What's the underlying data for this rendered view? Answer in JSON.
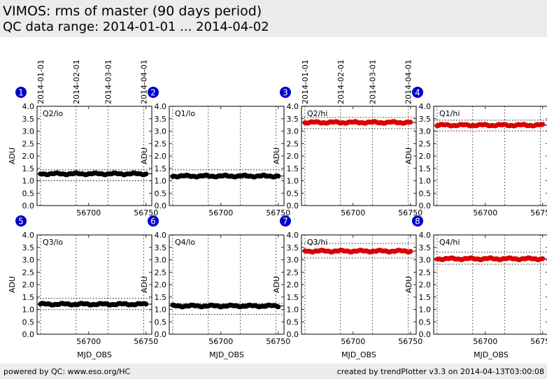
{
  "header": {
    "title": "VIMOS: rms of master (90 days period)",
    "subtitle": "QC data range: 2014-01-01 ... 2014-04-02"
  },
  "footer": {
    "left": "powered by QC: www.eso.org/HC",
    "right": "created by trendPlotter v3.3 on 2014-04-13T03:00:08"
  },
  "colors": {
    "lo": "#000000",
    "hi": "#dd0000",
    "badge": "#0000cc"
  },
  "chart_data": {
    "type": "scatter",
    "xlabel": "MJD_OBS",
    "ylabel": "ADU",
    "xlim": [
      56655,
      56755
    ],
    "ylim": [
      0.0,
      4.0
    ],
    "xticks": [
      56700,
      56750
    ],
    "yticks": [
      0.0,
      0.5,
      1.0,
      1.5,
      2.0,
      2.5,
      3.0,
      3.5,
      4.0
    ],
    "date_ticks": [
      {
        "mjd": 56658,
        "label": "2014-01-01"
      },
      {
        "mjd": 56689,
        "label": "2014-02-01"
      },
      {
        "mjd": 56717,
        "label": "2014-03-01"
      },
      {
        "mjd": 56748,
        "label": "2014-04-01"
      }
    ],
    "panels": [
      {
        "number": "1",
        "label": "Q2/lo",
        "mean": 1.28,
        "upper": 1.44,
        "lower": 1.0,
        "color": "lo"
      },
      {
        "number": "2",
        "label": "Q1/lo",
        "mean": 1.19,
        "upper": 1.44,
        "lower": 1.1,
        "color": "lo"
      },
      {
        "number": "3",
        "label": "Q2/hi",
        "mean": 3.35,
        "upper": 3.55,
        "lower": 3.1,
        "color": "hi"
      },
      {
        "number": "4",
        "label": "Q1/hi",
        "mean": 3.24,
        "upper": 3.44,
        "lower": 3.01,
        "color": "hi"
      },
      {
        "number": "5",
        "label": "Q3/lo",
        "mean": 1.21,
        "upper": 1.45,
        "lower": 0.99,
        "color": "lo"
      },
      {
        "number": "6",
        "label": "Q4/lo",
        "mean": 1.14,
        "upper": 1.24,
        "lower": 0.8,
        "color": "lo"
      },
      {
        "number": "7",
        "label": "Q3/hi",
        "mean": 3.35,
        "upper": 3.66,
        "lower": 3.07,
        "color": "hi"
      },
      {
        "number": "8",
        "label": "Q4/hi",
        "mean": 3.04,
        "upper": 3.3,
        "lower": 2.82,
        "color": "hi"
      }
    ]
  }
}
